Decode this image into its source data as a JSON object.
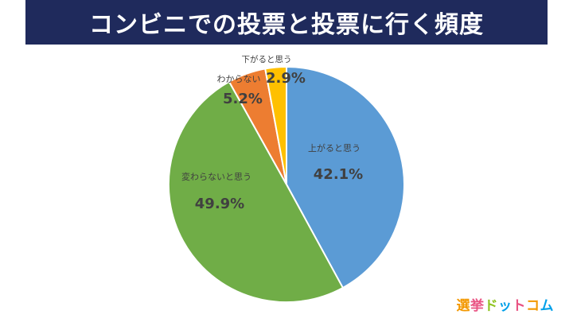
{
  "title": "コンビニでの投票と投票に行く頻度",
  "chart_data": {
    "type": "pie",
    "start_angle_deg": 0,
    "direction": "clockwise",
    "slices": [
      {
        "label": "上がると思う",
        "value": 42.1,
        "value_label": "42.1%",
        "color": "#5b9bd5"
      },
      {
        "label": "変わらないと思う",
        "value": 49.9,
        "value_label": "49.9%",
        "color": "#70ad47"
      },
      {
        "label": "わからない",
        "value": 5.2,
        "value_label": "5.2%",
        "color": "#ed7d31"
      },
      {
        "label": "下がると思う",
        "value": 2.9,
        "value_label": "2.9%",
        "color": "#ffc000"
      }
    ]
  },
  "logo": {
    "text": "選挙ドットコム",
    "colors": [
      "#f39800",
      "#e95383",
      "#8fc31f",
      "#00a0e9",
      "#e95383",
      "#f39800",
      "#00a0e9"
    ]
  }
}
